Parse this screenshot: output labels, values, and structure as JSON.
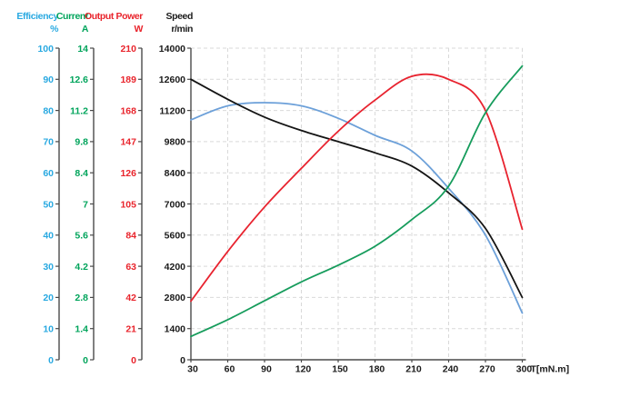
{
  "header": {
    "columns": [
      {
        "name": "Efficiency",
        "unit": "%",
        "color": "#29A9E1"
      },
      {
        "name": "Current",
        "unit": "A",
        "color": "#00A45B"
      },
      {
        "name": "Output Power",
        "unit": "W",
        "color": "#E9242C"
      },
      {
        "name": "Speed",
        "unit": "r/min",
        "color": "#1A1A1A"
      }
    ]
  },
  "y_axes": [
    {
      "id": "efficiency",
      "color": "#29A9E1",
      "max": 100,
      "tick_labels": [
        "100",
        "90",
        "80",
        "70",
        "60",
        "50",
        "40",
        "30",
        "20",
        "10",
        "0"
      ]
    },
    {
      "id": "current",
      "color": "#00A45B",
      "max": 14,
      "tick_labels": [
        "14",
        "12.6",
        "11.2",
        "9.8",
        "8.4",
        "7",
        "5.6",
        "4.2",
        "2.8",
        "1.4",
        "0"
      ]
    },
    {
      "id": "output-power",
      "color": "#E9242C",
      "max": 210,
      "tick_labels": [
        "210",
        "189",
        "168",
        "147",
        "126",
        "105",
        "84",
        "63",
        "42",
        "21",
        "0"
      ]
    },
    {
      "id": "speed",
      "color": "#1A1A1A",
      "max": 14000,
      "tick_labels": [
        "14000",
        "12600",
        "11200",
        "9800",
        "8400",
        "7000",
        "5600",
        "4200",
        "2800",
        "1400",
        "0"
      ]
    }
  ],
  "x_axis": {
    "label": "T[mN.m]",
    "min": 30,
    "max": 300,
    "step": 30,
    "tick_labels": [
      "30",
      "60",
      "90",
      "120",
      "150",
      "180",
      "210",
      "240",
      "270",
      "300"
    ]
  },
  "chart_data": {
    "type": "line",
    "xlabel": "T[mN.m]",
    "x": [
      30,
      60,
      90,
      120,
      150,
      180,
      210,
      240,
      270,
      300
    ],
    "grid": "dashed",
    "legend_position": "none",
    "series": [
      {
        "name": "Efficiency",
        "unit": "%",
        "color": "#6CA0D9",
        "axis_max": 100,
        "axis_min": 0,
        "values": [
          77,
          81.5,
          82.5,
          81.5,
          77.5,
          72,
          67,
          55,
          40,
          15
        ]
      },
      {
        "name": "Speed",
        "unit": "r/min",
        "color": "#141414",
        "axis_max": 14000,
        "axis_min": 0,
        "values": [
          12600,
          11700,
          10900,
          10300,
          9800,
          9300,
          8700,
          7500,
          5900,
          2800
        ]
      },
      {
        "name": "Output Power",
        "unit": "W",
        "color": "#E8232F",
        "axis_max": 210,
        "axis_min": 0,
        "values": [
          39.5,
          73,
          103,
          129,
          154,
          175,
          191,
          189,
          168,
          88
        ]
      },
      {
        "name": "Current",
        "unit": "A",
        "color": "#169C5C",
        "axis_max": 14,
        "axis_min": 0,
        "values": [
          1.05,
          1.8,
          2.65,
          3.5,
          4.25,
          5.1,
          6.3,
          7.8,
          11.1,
          13.2
        ]
      }
    ]
  }
}
